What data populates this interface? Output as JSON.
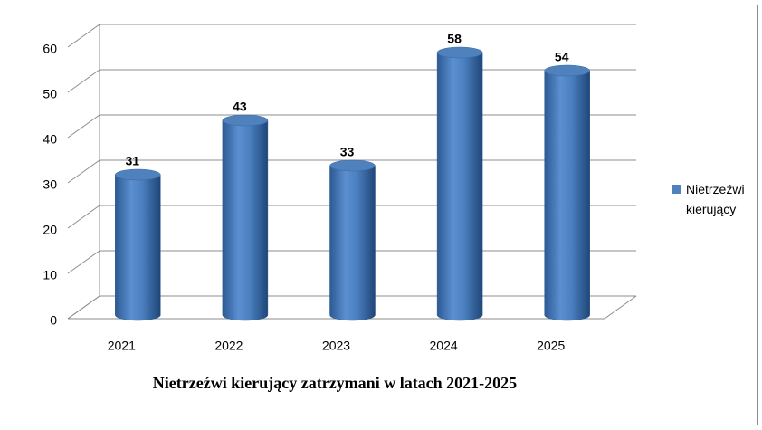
{
  "chart_data": {
    "type": "bar",
    "title": "Nietrzeźwi kierujący zatrzymani w latach 2021-2025",
    "categories": [
      "2021",
      "2022",
      "2023",
      "2024",
      "2025"
    ],
    "series": [
      {
        "name": "Nietrzeźwi kierujący",
        "color": "#4f81bd",
        "values": [
          31,
          43,
          33,
          58,
          54
        ]
      }
    ],
    "ylim": [
      0,
      60
    ],
    "yticks": [
      0,
      10,
      20,
      30,
      40,
      50,
      60
    ],
    "grid": true,
    "legend": "right"
  }
}
